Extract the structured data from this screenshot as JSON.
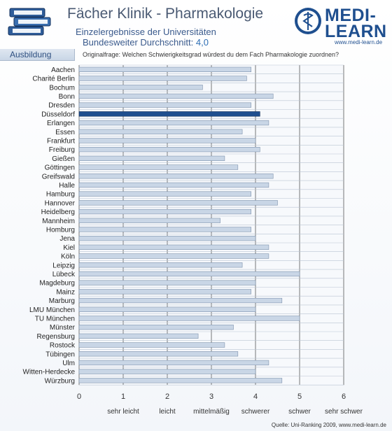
{
  "header": {
    "title": "Fächer Klinik - Pharmakologie",
    "subtitle_line1": "Einzelergebnisse der Universitäten",
    "subtitle_line2_prefix": "Bundesweiter Durchschnitt: ",
    "subtitle_line2_value": "4,0"
  },
  "logo": {
    "line1": "MEDI-",
    "line2": "LEARN",
    "url": "www.medi-learn.de"
  },
  "tab": {
    "label": "Ausbildung"
  },
  "question": "Originalfrage: Welchen Schwierigkeitsgrad würdest du dem Fach Pharmakologie zuordnen?",
  "source": "Quelle: Uni-Ranking 2009, www.medi-learn.de",
  "colors": {
    "bar": "#c9d6e6",
    "bar_edge": "#7f93ad",
    "highlight": "#1f4f8f",
    "axis_text": "#333333"
  },
  "chart_data": {
    "type": "bar",
    "orientation": "horizontal",
    "categories": [
      "Aachen",
      "Charité Berlin",
      "Bochum",
      "Bonn",
      "Dresden",
      "Düsseldorf",
      "Erlangen",
      "Essen",
      "Frankfurt",
      "Freiburg",
      "Gießen",
      "Göttingen",
      "Greifswald",
      "Halle",
      "Hamburg",
      "Hannover",
      "Heidelberg",
      "Mannheim",
      "Homburg",
      "Jena",
      "Kiel",
      "Köln",
      "Leipzig",
      "Lübeck",
      "Magdeburg",
      "Mainz",
      "Marburg",
      "LMU München",
      "TU München",
      "Münster",
      "Regensburg",
      "Rostock",
      "Tübingen",
      "Ulm",
      "Witten-Herdecke",
      "Würzburg"
    ],
    "values": [
      3.9,
      3.8,
      2.8,
      4.4,
      3.9,
      4.1,
      4.3,
      3.7,
      4.0,
      4.1,
      3.3,
      3.6,
      4.4,
      4.3,
      3.9,
      4.5,
      3.9,
      3.2,
      3.9,
      4.0,
      4.3,
      4.3,
      3.7,
      5.0,
      4.0,
      3.9,
      4.6,
      4.0,
      5.0,
      3.5,
      2.7,
      3.3,
      3.6,
      4.3,
      4.0,
      4.6
    ],
    "highlight": "Düsseldorf",
    "xlim": [
      0,
      6
    ],
    "xticks": [
      0,
      1,
      2,
      3,
      4,
      5,
      6
    ],
    "xtick_labels": [
      "0",
      "1",
      "2",
      "3",
      "4",
      "5",
      "6"
    ],
    "scale_labels": [
      {
        "at": 1,
        "label": "sehr leicht"
      },
      {
        "at": 2,
        "label": "leicht"
      },
      {
        "at": 3,
        "label": "mittelmäßig"
      },
      {
        "at": 4,
        "label": "schwerer"
      },
      {
        "at": 5,
        "label": "schwer"
      },
      {
        "at": 6,
        "label": "sehr schwer"
      }
    ],
    "grid": true
  }
}
